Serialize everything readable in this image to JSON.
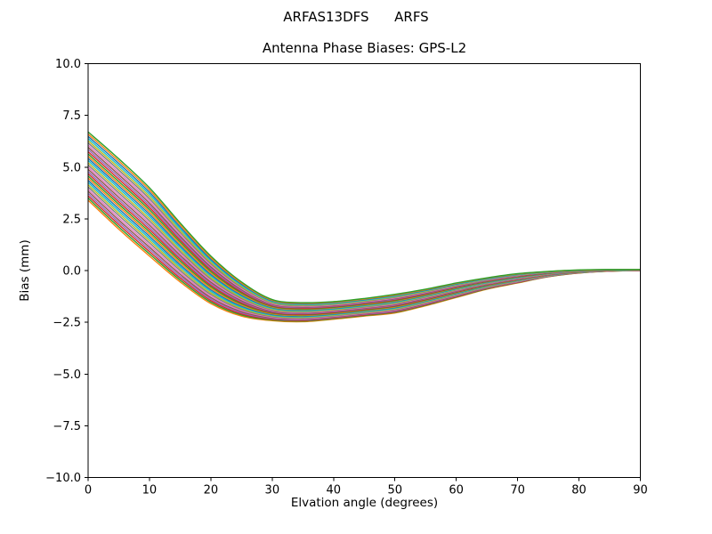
{
  "figure": {
    "suptitle": "ARFAS13DFS      ARFS",
    "axes_title": "Antenna Phase Biases: GPS-L2",
    "xlabel": "Elvation angle (degrees)",
    "ylabel": "Bias (mm)"
  },
  "chart_data": {
    "type": "line",
    "suptitle": "ARFAS13DFS      ARFS",
    "title": "Antenna Phase Biases: GPS-L2",
    "xlabel": "Elvation angle (degrees)",
    "ylabel": "Bias (mm)",
    "xlim": [
      0,
      90
    ],
    "ylim": [
      -10,
      10
    ],
    "xtick_values": [
      0,
      10,
      20,
      30,
      40,
      50,
      60,
      70,
      80,
      90
    ],
    "xtick_labels": [
      "0",
      "10",
      "20",
      "30",
      "40",
      "50",
      "60",
      "70",
      "80",
      "90"
    ],
    "ytick_values": [
      10.0,
      7.5,
      5.0,
      2.5,
      0.0,
      -2.5,
      -5.0,
      -7.5,
      -10.0
    ],
    "ytick_labels": [
      "10.0",
      "7.5",
      "5.0",
      "2.5",
      "0.0",
      "−2.5",
      "−5.0",
      "−7.5",
      "−10.0"
    ],
    "grid": false,
    "legend": "none",
    "axis_color": "#000000",
    "background": "#ffffff",
    "n_series": 32,
    "series_note": "32 unlabeled antenna-phase-bias curves forming a tight band; curve i lies at fraction t between envelope_lower and envelope_upper at every x",
    "x": [
      0,
      5,
      10,
      15,
      20,
      25,
      30,
      35,
      40,
      45,
      50,
      55,
      60,
      65,
      70,
      75,
      80,
      85,
      90
    ],
    "envelope_upper": [
      6.7,
      5.4,
      4.0,
      2.3,
      0.7,
      -0.55,
      -1.4,
      -1.55,
      -1.5,
      -1.35,
      -1.15,
      -0.9,
      -0.6,
      -0.35,
      -0.15,
      -0.04,
      0.03,
      0.05,
      0.05
    ],
    "envelope_lower": [
      3.4,
      2.0,
      0.7,
      -0.55,
      -1.6,
      -2.2,
      -2.42,
      -2.47,
      -2.35,
      -2.2,
      -2.05,
      -1.7,
      -1.3,
      -0.9,
      -0.6,
      -0.3,
      -0.12,
      -0.03,
      0.0
    ],
    "series": [
      {
        "t": 0.0,
        "color": "#ff7f0e"
      },
      {
        "t": 0.032,
        "color": "#2ca02c"
      },
      {
        "t": 0.065,
        "color": "#d62728"
      },
      {
        "t": 0.097,
        "color": "#9467bd"
      },
      {
        "t": 0.129,
        "color": "#8c564b"
      },
      {
        "t": 0.161,
        "color": "#e377c2"
      },
      {
        "t": 0.194,
        "color": "#7f7f7f"
      },
      {
        "t": 0.226,
        "color": "#bcbd22"
      },
      {
        "t": 0.258,
        "color": "#17becf"
      },
      {
        "t": 0.29,
        "color": "#1f77b4"
      },
      {
        "t": 0.323,
        "color": "#ff7f0e"
      },
      {
        "t": 0.355,
        "color": "#2ca02c"
      },
      {
        "t": 0.387,
        "color": "#d62728"
      },
      {
        "t": 0.419,
        "color": "#9467bd"
      },
      {
        "t": 0.452,
        "color": "#8c564b"
      },
      {
        "t": 0.484,
        "color": "#e377c2"
      },
      {
        "t": 0.516,
        "color": "#7f7f7f"
      },
      {
        "t": 0.548,
        "color": "#bcbd22"
      },
      {
        "t": 0.581,
        "color": "#17becf"
      },
      {
        "t": 0.613,
        "color": "#1f77b4"
      },
      {
        "t": 0.645,
        "color": "#ff7f0e"
      },
      {
        "t": 0.677,
        "color": "#2ca02c"
      },
      {
        "t": 0.71,
        "color": "#d62728"
      },
      {
        "t": 0.742,
        "color": "#9467bd"
      },
      {
        "t": 0.774,
        "color": "#8c564b"
      },
      {
        "t": 0.806,
        "color": "#e377c2"
      },
      {
        "t": 0.839,
        "color": "#7f7f7f"
      },
      {
        "t": 0.871,
        "color": "#bcbd22"
      },
      {
        "t": 0.903,
        "color": "#17becf"
      },
      {
        "t": 0.935,
        "color": "#1f77b4"
      },
      {
        "t": 0.968,
        "color": "#ff7f0e"
      },
      {
        "t": 1.0,
        "color": "#2ca02c"
      }
    ]
  }
}
